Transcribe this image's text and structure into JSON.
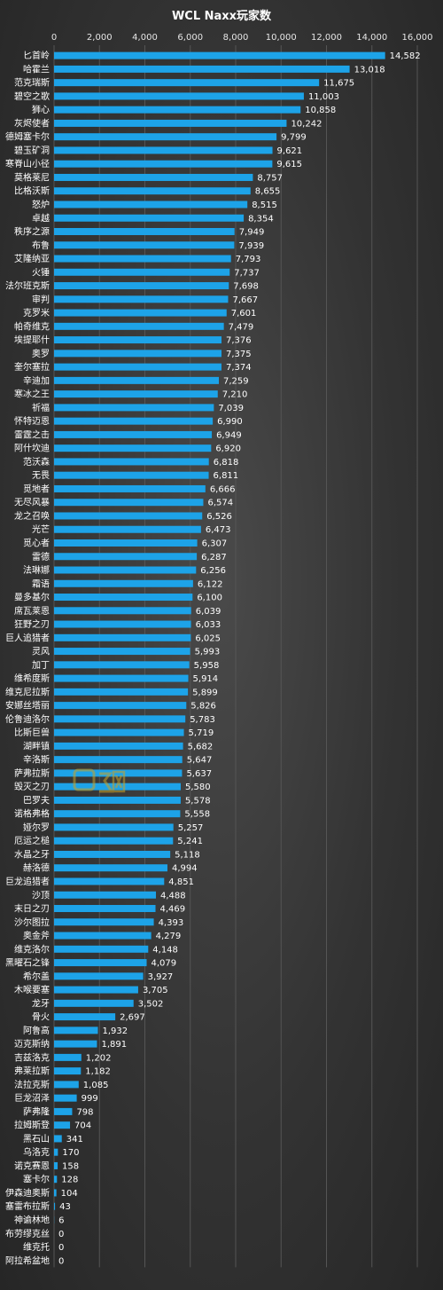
{
  "chart_data": {
    "type": "bar",
    "orientation": "horizontal",
    "title": "WCL  Naxx玩家数",
    "xlim": [
      0,
      16000
    ],
    "xticks": [
      0,
      2000,
      4000,
      6000,
      8000,
      10000,
      12000,
      14000,
      16000
    ],
    "xtick_labels": [
      "0",
      "2,000",
      "4,000",
      "6,000",
      "8,000",
      "10,000",
      "12,000",
      "14,000",
      "16,000"
    ],
    "grid": true,
    "bar_color": "#1da3e8",
    "categories": [
      "匕首岭",
      "哈霍兰",
      "范克瑞斯",
      "碧空之歌",
      "狮心",
      "灰烬使者",
      "德姆塞卡尔",
      "碧玉矿洞",
      "寒脊山小径",
      "莫格莱尼",
      "比格沃斯",
      "怒炉",
      "卓越",
      "秩序之源",
      "布鲁",
      "艾隆纳亚",
      "火锤",
      "法尔班克斯",
      "审判",
      "克罗米",
      "帕奇维克",
      "埃提耶什",
      "奥罗",
      "奎尔塞拉",
      "辛迪加",
      "寒冰之王",
      "祈福",
      "怀特迈恩",
      "雷霆之击",
      "阿什坎迪",
      "范沃森",
      "无畏",
      "觅地者",
      "无尽风暴",
      "龙之召唤",
      "光芒",
      "觅心者",
      "雷德",
      "法琳娜",
      "霜语",
      "曼多基尔",
      "席瓦莱恩",
      "狂野之刃",
      "巨人追猎者",
      "灵风",
      "加丁",
      "维希度斯",
      "维克尼拉斯",
      "安娜丝塔丽",
      "伦鲁迪洛尔",
      "比斯巨兽",
      "湖畔镇",
      "辛洛斯",
      "萨弗拉斯",
      "毁灭之刃",
      "巴罗夫",
      "诺格弗格",
      "娅尔罗",
      "厄运之槌",
      "水晶之牙",
      "赫洛德",
      "巨龙追猎者",
      "沙顶",
      "末日之刃",
      "沙尔图拉",
      "奥金斧",
      "维克洛尔",
      "黑曜石之锋",
      "希尔盖",
      "木喉要塞",
      "龙牙",
      "骨火",
      "阿鲁高",
      "迈克斯纳",
      "吉兹洛克",
      "弗莱拉斯",
      "法拉克斯",
      "巨龙沼泽",
      "萨弗隆",
      "拉姆斯登",
      "黑石山",
      "乌洛克",
      "诺克赛恩",
      "塞卡尔",
      "伊森迪奥斯",
      "塞雷布拉斯",
      "神谕林地",
      "布劳缪克丝",
      "维克托",
      "阿拉希盆地"
    ],
    "values": [
      14582,
      13018,
      11675,
      11003,
      10858,
      10242,
      9799,
      9621,
      9615,
      8757,
      8655,
      8515,
      8354,
      7949,
      7939,
      7793,
      7737,
      7698,
      7667,
      7601,
      7479,
      7376,
      7375,
      7374,
      7259,
      7210,
      7039,
      6990,
      6949,
      6920,
      6818,
      6811,
      6666,
      6574,
      6526,
      6473,
      6307,
      6287,
      6256,
      6122,
      6100,
      6039,
      6033,
      6025,
      5993,
      5958,
      5914,
      5899,
      5826,
      5783,
      5719,
      5682,
      5647,
      5637,
      5580,
      5578,
      5558,
      5257,
      5241,
      5118,
      4994,
      4851,
      4488,
      4469,
      4393,
      4279,
      4148,
      4079,
      3927,
      3705,
      3502,
      2697,
      1932,
      1891,
      1202,
      1182,
      1085,
      999,
      798,
      704,
      341,
      170,
      158,
      128,
      104,
      43,
      6,
      0,
      0,
      0
    ],
    "value_labels": [
      "14,582",
      "13,018",
      "11,675",
      "11,003",
      "10,858",
      "10,242",
      "9,799",
      "9,621",
      "9,615",
      "8,757",
      "8,655",
      "8,515",
      "8,354",
      "7,949",
      "7,939",
      "7,793",
      "7,737",
      "7,698",
      "7,667",
      "7,601",
      "7,479",
      "7,376",
      "7,375",
      "7,374",
      "7,259",
      "7,210",
      "7,039",
      "6,990",
      "6,949",
      "6,920",
      "6,818",
      "6,811",
      "6,666",
      "6,574",
      "6,526",
      "6,473",
      "6,307",
      "6,287",
      "6,256",
      "6,122",
      "6,100",
      "6,039",
      "6,033",
      "6,025",
      "5,993",
      "5,958",
      "5,914",
      "5,899",
      "5,826",
      "5,783",
      "5,719",
      "5,682",
      "5,647",
      "5,637",
      "5,580",
      "5,578",
      "5,558",
      "5,257",
      "5,241",
      "5,118",
      "4,994",
      "4,851",
      "4,488",
      "4,469",
      "4,393",
      "4,279",
      "4,148",
      "4,079",
      "3,927",
      "3,705",
      "3,502",
      "2,697",
      "1,932",
      "1,891",
      "1,202",
      "1,182",
      "1,085",
      "999",
      "798",
      "704",
      "341",
      "170",
      "158",
      "128",
      "104",
      "43",
      "6",
      "0",
      "0",
      "0"
    ]
  },
  "watermark": {
    "icon": "site-logo-icon",
    "color": "#c9a227"
  }
}
